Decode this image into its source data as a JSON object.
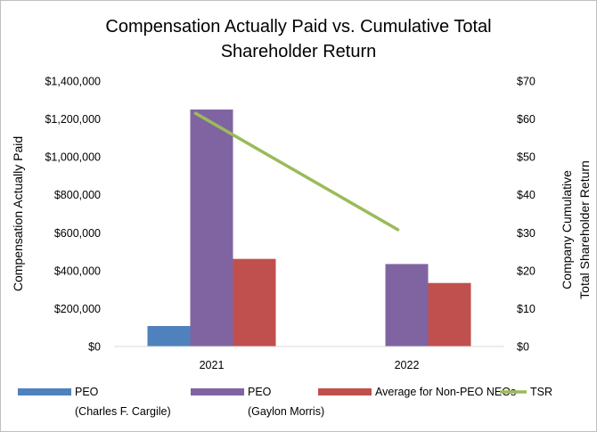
{
  "chart_data": {
    "type": "bar",
    "title_lines": [
      "Compensation Actually Paid vs. Cumulative Total",
      "Shareholder Return"
    ],
    "categories": [
      "2021",
      "2022"
    ],
    "ylabel": "Compensation Actually Paid",
    "y2label_lines": [
      "Company Cumulative",
      "Total Shareholder Return"
    ],
    "ylim": [
      0,
      1400000
    ],
    "yticks": [
      0,
      200000,
      400000,
      600000,
      800000,
      1000000,
      1200000,
      1400000
    ],
    "ytick_labels": [
      "$0",
      "$200,000",
      "$400,000",
      "$600,000",
      "$800,000",
      "$1,000,000",
      "$1,200,000",
      "$1,400,000"
    ],
    "y2lim": [
      0,
      70
    ],
    "y2ticks": [
      0,
      10,
      20,
      30,
      40,
      50,
      60,
      70
    ],
    "y2tick_labels": [
      "$0",
      "$10",
      "$20",
      "$30",
      "$40",
      "$50",
      "$60",
      "$70"
    ],
    "series": [
      {
        "name": "PEO",
        "name_line2": "(Charles F. Cargile)",
        "color": "#4F81BD",
        "type": "bar",
        "values": [
          108000,
          null
        ]
      },
      {
        "name": "PEO",
        "name_line2": "(Gaylon Morris)",
        "color": "#8064A2",
        "type": "bar",
        "values": [
          1250000,
          435000
        ]
      },
      {
        "name": "Average for Non-PEO NEOs",
        "name_line2": "",
        "color": "#C0504D",
        "type": "bar",
        "values": [
          462000,
          335000
        ]
      },
      {
        "name": "TSR",
        "name_line2": "",
        "color": "#9BBB59",
        "type": "line",
        "axis": "right",
        "values": [
          61.5,
          30.8
        ]
      }
    ],
    "grid": false,
    "legend": "bottom"
  }
}
